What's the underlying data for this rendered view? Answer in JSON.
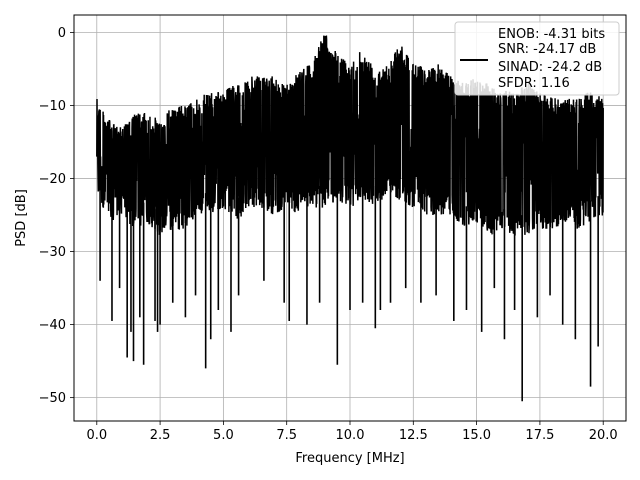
{
  "chart_data": {
    "type": "line",
    "xlabel": "Frequency [MHz]",
    "ylabel": "PSD [dB]",
    "xlim": [
      -0.9,
      20.9
    ],
    "ylim": [
      -53.2,
      2.4
    ],
    "xticks": [
      0.0,
      2.5,
      5.0,
      7.5,
      10.0,
      12.5,
      15.0,
      17.5,
      20.0
    ],
    "xtick_labels": [
      "0.0",
      "2.5",
      "5.0",
      "7.5",
      "10.0",
      "12.5",
      "15.0",
      "17.5",
      "20.0"
    ],
    "yticks": [
      0,
      -10,
      -20,
      -30,
      -40,
      -50
    ],
    "ytick_labels": [
      "0",
      "−10",
      "−20",
      "−30",
      "−40",
      "−50"
    ],
    "grid": true,
    "legend_position": "top-right",
    "legend": [
      "ENOB: -4.31 bits",
      "SNR: -24.17 dB",
      "SINAD: -24.2 dB",
      "SFDR: 1.16"
    ],
    "series": [
      {
        "color": "#000000",
        "band_x": [
          0.0,
          0.5,
          1.0,
          1.5,
          2.0,
          2.5,
          3.0,
          3.5,
          4.0,
          4.5,
          5.0,
          5.5,
          6.0,
          6.5,
          7.0,
          7.5,
          8.0,
          8.5,
          9.0,
          9.5,
          10.0,
          10.5,
          11.0,
          11.5,
          12.0,
          12.5,
          13.0,
          13.5,
          14.0,
          14.5,
          15.0,
          15.5,
          16.0,
          16.5,
          17.0,
          17.5,
          18.0,
          18.5,
          19.0,
          19.5,
          20.0
        ],
        "upper": [
          -9,
          -12,
          -13,
          -11,
          -11,
          -12,
          -10,
          -10,
          -9,
          -8,
          -8,
          -7,
          -6,
          -6,
          -6,
          -7,
          -5,
          -4,
          0,
          -3,
          -4,
          -2,
          -5,
          -4,
          -1.5,
          -4,
          -5,
          -4,
          -6,
          -7,
          -6,
          -7,
          -8,
          -8,
          -7,
          -8,
          -9,
          -9,
          -9,
          -8,
          -9
        ],
        "lower": [
          -22,
          -26,
          -25,
          -27,
          -26,
          -28,
          -27,
          -27,
          -25,
          -25,
          -24,
          -26,
          -24,
          -24,
          -25,
          -24,
          -25,
          -24,
          -24,
          -23,
          -24,
          -23,
          -24,
          -22,
          -23,
          -24,
          -25,
          -25,
          -25,
          -27,
          -26,
          -28,
          -27,
          -28,
          -28,
          -27,
          -27,
          -26,
          -27,
          -26,
          -25
        ],
        "dips": [
          [
            0.13,
            -34
          ],
          [
            0.6,
            -39.5
          ],
          [
            0.9,
            -35
          ],
          [
            1.2,
            -44.5
          ],
          [
            1.35,
            -41
          ],
          [
            1.45,
            -45
          ],
          [
            1.7,
            -39
          ],
          [
            1.85,
            -45.5
          ],
          [
            2.3,
            -39.5
          ],
          [
            2.4,
            -41
          ],
          [
            2.5,
            -40
          ],
          [
            3.0,
            -37
          ],
          [
            3.5,
            -39
          ],
          [
            3.9,
            -36
          ],
          [
            4.3,
            -46
          ],
          [
            4.5,
            -42
          ],
          [
            4.8,
            -38
          ],
          [
            5.3,
            -41
          ],
          [
            5.6,
            -36
          ],
          [
            6.6,
            -34
          ],
          [
            7.4,
            -37
          ],
          [
            7.6,
            -39.5
          ],
          [
            8.3,
            -40
          ],
          [
            8.8,
            -37
          ],
          [
            9.5,
            -45.5
          ],
          [
            10.0,
            -38
          ],
          [
            10.5,
            -37
          ],
          [
            11.0,
            -40.5
          ],
          [
            11.2,
            -38
          ],
          [
            11.6,
            -37
          ],
          [
            12.2,
            -35
          ],
          [
            12.8,
            -37
          ],
          [
            13.4,
            -36
          ],
          [
            14.1,
            -39.5
          ],
          [
            14.6,
            -38
          ],
          [
            15.2,
            -41
          ],
          [
            15.7,
            -35
          ],
          [
            16.1,
            -42
          ],
          [
            16.5,
            -38
          ],
          [
            16.8,
            -50.5
          ],
          [
            17.4,
            -39
          ],
          [
            17.9,
            -36
          ],
          [
            18.4,
            -40
          ],
          [
            18.9,
            -42
          ],
          [
            19.5,
            -48.5
          ],
          [
            19.8,
            -43
          ]
        ]
      }
    ]
  }
}
